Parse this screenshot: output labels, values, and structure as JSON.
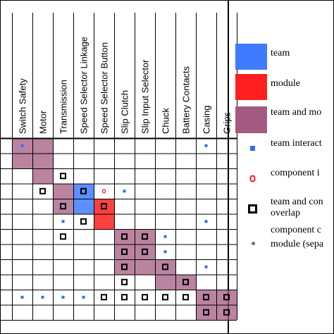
{
  "colors": {
    "team": "#3f7bff",
    "module": "#ff1f1f",
    "team_and_module": "#a35a80",
    "team_interaction": "#2f6ff2",
    "component_interaction": "#e82020",
    "overlap": "#000000"
  },
  "columns": [
    "Switch Safety",
    "Motor",
    "Transmission",
    "Speed Selector Linkage",
    "Speed Selector Button",
    "Slip Clutch",
    "Slip Input Selector",
    "Chuck",
    "Battery Contacts",
    "Casing",
    "Grips"
  ],
  "legend": {
    "team": "team",
    "module": "module",
    "team_and_module": "team and mo",
    "team_interaction": "team interact",
    "component_interaction": "component i",
    "overlap_line1": "team and con",
    "overlap_line2": "overlap",
    "overlap_line3": "component c",
    "separator": "module (sepa"
  },
  "matrix": {
    "blocks": [
      {
        "type": "team_and_module",
        "rows": [
          0,
          1
        ],
        "cols": [
          0,
          1
        ]
      },
      {
        "type": "team_and_module",
        "rows": [
          2,
          2
        ],
        "cols": [
          1,
          1
        ]
      },
      {
        "type": "team_and_module",
        "rows": [
          3,
          4
        ],
        "cols": [
          2,
          2
        ]
      },
      {
        "type": "team",
        "rows": [
          3,
          4
        ],
        "cols": [
          3,
          3
        ]
      },
      {
        "type": "module",
        "rows": [
          4,
          5
        ],
        "cols": [
          4,
          4
        ]
      },
      {
        "type": "team_and_module",
        "rows": [
          6,
          8
        ],
        "cols": [
          5,
          6
        ]
      },
      {
        "type": "team_and_module",
        "rows": [
          8,
          9
        ],
        "cols": [
          7,
          7
        ]
      },
      {
        "type": "team_and_module",
        "rows": [
          9,
          9
        ],
        "cols": [
          8,
          8
        ]
      },
      {
        "type": "team_and_module",
        "rows": [
          10,
          11
        ],
        "cols": [
          9,
          10
        ]
      }
    ],
    "marks": [
      {
        "type": "team_interaction",
        "row": 0,
        "col": 0
      },
      {
        "type": "team_interaction",
        "row": 0,
        "col": 9
      },
      {
        "type": "overlap",
        "row": 2,
        "col": 2
      },
      {
        "type": "overlap",
        "row": 3,
        "col": 1
      },
      {
        "type": "overlap",
        "row": 3,
        "col": 3
      },
      {
        "type": "component_interaction",
        "row": 3,
        "col": 4
      },
      {
        "type": "team_interaction",
        "row": 3,
        "col": 5
      },
      {
        "type": "overlap",
        "row": 4,
        "col": 2
      },
      {
        "type": "overlap",
        "row": 4,
        "col": 4
      },
      {
        "type": "overlap",
        "row": 5,
        "col": 3
      },
      {
        "type": "team_interaction",
        "row": 5,
        "col": 2
      },
      {
        "type": "team_interaction",
        "row": 5,
        "col": 9
      },
      {
        "type": "overlap",
        "row": 6,
        "col": 2
      },
      {
        "type": "overlap",
        "row": 6,
        "col": 5
      },
      {
        "type": "overlap",
        "row": 6,
        "col": 6
      },
      {
        "type": "team_interaction",
        "row": 6,
        "col": 7
      },
      {
        "type": "overlap",
        "row": 7,
        "col": 5
      },
      {
        "type": "overlap",
        "row": 7,
        "col": 6
      },
      {
        "type": "team_interaction",
        "row": 7,
        "col": 7
      },
      {
        "type": "overlap",
        "row": 8,
        "col": 5
      },
      {
        "type": "overlap",
        "row": 8,
        "col": 7
      },
      {
        "type": "team_interaction",
        "row": 8,
        "col": 9
      },
      {
        "type": "overlap",
        "row": 9,
        "col": 5
      },
      {
        "type": "overlap",
        "row": 9,
        "col": 8
      },
      {
        "type": "team_interaction",
        "row": 10,
        "col": 0
      },
      {
        "type": "team_interaction",
        "row": 10,
        "col": 1
      },
      {
        "type": "team_interaction",
        "row": 10,
        "col": 2
      },
      {
        "type": "team_interaction",
        "row": 10,
        "col": 3
      },
      {
        "type": "overlap",
        "row": 10,
        "col": 4
      },
      {
        "type": "overlap",
        "row": 10,
        "col": 5
      },
      {
        "type": "overlap",
        "row": 10,
        "col": 6
      },
      {
        "type": "overlap",
        "row": 10,
        "col": 7
      },
      {
        "type": "overlap",
        "row": 10,
        "col": 8
      },
      {
        "type": "overlap",
        "row": 10,
        "col": 9
      },
      {
        "type": "overlap",
        "row": 10,
        "col": 10
      },
      {
        "type": "overlap",
        "row": 11,
        "col": 9
      },
      {
        "type": "overlap",
        "row": 11,
        "col": 10
      }
    ]
  }
}
